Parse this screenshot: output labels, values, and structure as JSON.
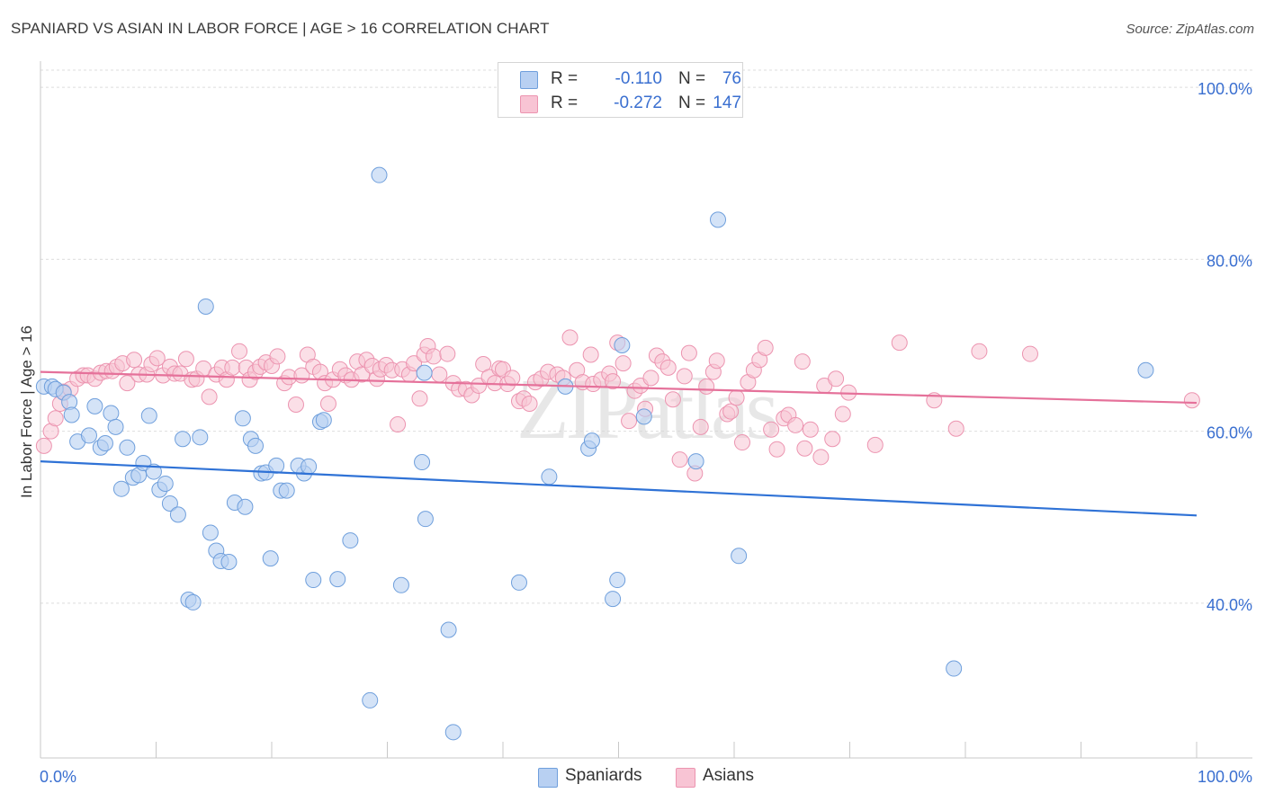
{
  "title": "SPANIARD VS ASIAN IN LABOR FORCE | AGE > 16 CORRELATION CHART",
  "source": "Source: ZipAtlas.com",
  "watermark": "ZIPatlas",
  "legend": {
    "rows": [
      {
        "r_label": "R =",
        "r_value": "-0.110",
        "n_label": "N =",
        "n_value": "76"
      },
      {
        "r_label": "R =",
        "r_value": "-0.272",
        "n_label": "N =",
        "n_value": "147"
      }
    ]
  },
  "bottom_legend": [
    "Spaniards",
    "Asians"
  ],
  "colors": {
    "blue_fill": "#b8d0f2",
    "blue_stroke": "#6f9fdc",
    "blue_line": "#2f72d6",
    "pink_fill": "#f8c4d4",
    "pink_stroke": "#ec94b0",
    "pink_line": "#e5719a",
    "axis_text": "#3a6fd0",
    "grid": "#dddddd"
  },
  "chart_data": {
    "type": "scatter",
    "title": "SPANIARD VS ASIAN IN LABOR FORCE | AGE > 16 CORRELATION CHART",
    "xlabel": "",
    "ylabel": "In Labor Force | Age > 16",
    "xlim": [
      0,
      100
    ],
    "ylim": [
      22,
      102
    ],
    "x_tick_labels": [
      "0.0%",
      "100.0%"
    ],
    "y_ticks": [
      40,
      60,
      80,
      100
    ],
    "y_tick_labels": [
      "40.0%",
      "60.0%",
      "80.0%",
      "100.0%"
    ],
    "grid": true,
    "series": [
      {
        "name": "Spaniards",
        "trend": {
          "x": [
            0,
            100
          ],
          "y": [
            56.5,
            50.2
          ]
        },
        "points": [
          [
            0.3,
            65.2
          ],
          [
            1,
            65.2
          ],
          [
            1.3,
            64.9
          ],
          [
            2,
            64.5
          ],
          [
            2.5,
            63.4
          ],
          [
            2.7,
            61.9
          ],
          [
            3.2,
            58.8
          ],
          [
            4.2,
            59.5
          ],
          [
            4.7,
            62.9
          ],
          [
            5.2,
            58.1
          ],
          [
            5.6,
            58.6
          ],
          [
            6.1,
            62.1
          ],
          [
            6.5,
            60.5
          ],
          [
            7,
            53.3
          ],
          [
            7.5,
            58.1
          ],
          [
            8,
            54.6
          ],
          [
            8.5,
            54.9
          ],
          [
            8.9,
            56.3
          ],
          [
            9.4,
            61.8
          ],
          [
            9.8,
            55.3
          ],
          [
            10.3,
            53.2
          ],
          [
            10.8,
            53.9
          ],
          [
            11.2,
            51.6
          ],
          [
            11.9,
            50.3
          ],
          [
            12.3,
            59.1
          ],
          [
            12.8,
            40.4
          ],
          [
            13.2,
            40.1
          ],
          [
            13.8,
            59.3
          ],
          [
            14.3,
            74.5
          ],
          [
            14.7,
            48.2
          ],
          [
            15.2,
            46.1
          ],
          [
            15.6,
            44.9
          ],
          [
            16.3,
            44.8
          ],
          [
            16.8,
            51.7
          ],
          [
            17.5,
            61.5
          ],
          [
            17.7,
            51.2
          ],
          [
            18.2,
            59.1
          ],
          [
            18.6,
            58.3
          ],
          [
            19.1,
            55.1
          ],
          [
            19.5,
            55.2
          ],
          [
            19.9,
            45.2
          ],
          [
            20.4,
            56
          ],
          [
            20.8,
            53.1
          ],
          [
            21.3,
            53.1
          ],
          [
            22.8,
            55.1
          ],
          [
            22.3,
            56
          ],
          [
            23.2,
            55.9
          ],
          [
            23.6,
            42.7
          ],
          [
            24.2,
            61.1
          ],
          [
            24.5,
            61.3
          ],
          [
            25.7,
            42.8
          ],
          [
            26.8,
            47.3
          ],
          [
            28.5,
            28.7
          ],
          [
            29.3,
            89.8
          ],
          [
            31.2,
            42.1
          ],
          [
            33,
            56.4
          ],
          [
            33.2,
            66.8
          ],
          [
            33.3,
            49.8
          ],
          [
            35.3,
            36.9
          ],
          [
            35.7,
            25
          ],
          [
            41.4,
            42.4
          ],
          [
            44,
            54.7
          ],
          [
            45.4,
            65.2
          ],
          [
            47.4,
            58
          ],
          [
            47.7,
            58.9
          ],
          [
            49.5,
            40.5
          ],
          [
            49.9,
            42.7
          ],
          [
            50.3,
            70
          ],
          [
            52.2,
            61.7
          ],
          [
            56.7,
            56.5
          ],
          [
            58.6,
            84.6
          ],
          [
            60.4,
            45.5
          ],
          [
            79,
            32.4
          ],
          [
            95.6,
            67.1
          ]
        ]
      },
      {
        "name": "Asians",
        "trend": {
          "x": [
            0,
            100
          ],
          "y": [
            66.9,
            63.3
          ]
        },
        "points": [
          [
            0.3,
            58.3
          ],
          [
            0.9,
            60
          ],
          [
            1.3,
            61.5
          ],
          [
            1.7,
            63.2
          ],
          [
            2,
            64.6
          ],
          [
            2.6,
            64.9
          ],
          [
            3.2,
            66.1
          ],
          [
            3.7,
            66.5
          ],
          [
            4.1,
            66.5
          ],
          [
            4.7,
            66.1
          ],
          [
            5.2,
            66.8
          ],
          [
            5.7,
            67
          ],
          [
            6.2,
            67
          ],
          [
            6.6,
            67.5
          ],
          [
            7.1,
            67.9
          ],
          [
            7.5,
            65.6
          ],
          [
            8.1,
            68.3
          ],
          [
            8.5,
            66.6
          ],
          [
            9.2,
            66.6
          ],
          [
            9.6,
            67.8
          ],
          [
            10.1,
            68.5
          ],
          [
            10.6,
            66.5
          ],
          [
            11.2,
            67.5
          ],
          [
            11.6,
            66.7
          ],
          [
            12.1,
            66.7
          ],
          [
            12.6,
            68.4
          ],
          [
            13.1,
            66
          ],
          [
            13.5,
            66.1
          ],
          [
            14.1,
            67.3
          ],
          [
            14.6,
            64
          ],
          [
            15.2,
            66.6
          ],
          [
            15.7,
            67.4
          ],
          [
            16.1,
            66
          ],
          [
            16.6,
            67.4
          ],
          [
            17.2,
            69.3
          ],
          [
            17.8,
            67.4
          ],
          [
            18.1,
            66
          ],
          [
            18.6,
            66.9
          ],
          [
            19,
            67.5
          ],
          [
            19.5,
            68
          ],
          [
            20,
            67.6
          ],
          [
            20.5,
            68.7
          ],
          [
            21.1,
            65.6
          ],
          [
            21.5,
            66.3
          ],
          [
            22.1,
            63.1
          ],
          [
            22.6,
            66.5
          ],
          [
            23.1,
            68.9
          ],
          [
            23.6,
            67.5
          ],
          [
            24.2,
            66.9
          ],
          [
            24.6,
            65.6
          ],
          [
            24.9,
            63.2
          ],
          [
            25.3,
            66
          ],
          [
            25.9,
            67.2
          ],
          [
            26.4,
            66.5
          ],
          [
            26.9,
            66
          ],
          [
            27.4,
            68.1
          ],
          [
            27.8,
            66.6
          ],
          [
            28.2,
            68.3
          ],
          [
            28.7,
            67.6
          ],
          [
            29.1,
            66.1
          ],
          [
            29.4,
            67.2
          ],
          [
            29.9,
            67.7
          ],
          [
            30.4,
            67.1
          ],
          [
            30.9,
            60.8
          ],
          [
            31.3,
            67.2
          ],
          [
            31.9,
            66.6
          ],
          [
            32.3,
            67.9
          ],
          [
            32.8,
            63.8
          ],
          [
            33.2,
            68.9
          ],
          [
            33.5,
            69.9
          ],
          [
            34,
            68.7
          ],
          [
            34.5,
            66.6
          ],
          [
            35.2,
            69
          ],
          [
            35.7,
            65.6
          ],
          [
            36.2,
            64.9
          ],
          [
            36.8,
            64.9
          ],
          [
            37.3,
            64.2
          ],
          [
            37.9,
            65.3
          ],
          [
            38.3,
            67.8
          ],
          [
            38.8,
            66.3
          ],
          [
            39.3,
            65.6
          ],
          [
            39.7,
            67.3
          ],
          [
            40,
            67.2
          ],
          [
            40.4,
            65.5
          ],
          [
            40.8,
            66.2
          ],
          [
            41.4,
            63.5
          ],
          [
            41.8,
            63.8
          ],
          [
            42.3,
            63.2
          ],
          [
            42.8,
            65.7
          ],
          [
            43.3,
            66.1
          ],
          [
            43.9,
            66.9
          ],
          [
            44.7,
            66.6
          ],
          [
            45.2,
            66.2
          ],
          [
            45.8,
            70.9
          ],
          [
            46.4,
            67.1
          ],
          [
            46.9,
            65.7
          ],
          [
            47.6,
            68.9
          ],
          [
            47.8,
            65.5
          ],
          [
            48.5,
            66
          ],
          [
            49.2,
            66.7
          ],
          [
            49.5,
            65.8
          ],
          [
            49.9,
            70.3
          ],
          [
            50.4,
            67.9
          ],
          [
            50.9,
            61.2
          ],
          [
            51.4,
            64.7
          ],
          [
            51.9,
            65.3
          ],
          [
            52.3,
            62.6
          ],
          [
            52.8,
            66.2
          ],
          [
            53.3,
            68.8
          ],
          [
            53.8,
            68.1
          ],
          [
            54.3,
            67.4
          ],
          [
            54.7,
            63.7
          ],
          [
            55.3,
            56.7
          ],
          [
            55.7,
            66.4
          ],
          [
            56.1,
            69.1
          ],
          [
            56.6,
            55.1
          ],
          [
            57.1,
            60.5
          ],
          [
            57.6,
            65.2
          ],
          [
            58.2,
            66.9
          ],
          [
            58.5,
            68.2
          ],
          [
            59.4,
            62
          ],
          [
            59.7,
            62.3
          ],
          [
            60.2,
            63.9
          ],
          [
            60.7,
            58.7
          ],
          [
            61.2,
            65.7
          ],
          [
            61.7,
            67.1
          ],
          [
            62.2,
            68.3
          ],
          [
            62.7,
            69.7
          ],
          [
            63.2,
            60.2
          ],
          [
            63.7,
            57.9
          ],
          [
            64.3,
            61.5
          ],
          [
            64.7,
            61.9
          ],
          [
            65.3,
            60.7
          ],
          [
            65.9,
            68.1
          ],
          [
            66.1,
            58
          ],
          [
            66.6,
            60.2
          ],
          [
            67.5,
            57
          ],
          [
            67.8,
            65.3
          ],
          [
            68.5,
            59.1
          ],
          [
            68.8,
            66.1
          ],
          [
            69.4,
            62
          ],
          [
            69.9,
            64.5
          ],
          [
            72.2,
            58.4
          ],
          [
            74.3,
            70.3
          ],
          [
            77.3,
            63.6
          ],
          [
            79.2,
            60.3
          ],
          [
            81.2,
            69.3
          ],
          [
            85.6,
            69
          ],
          [
            99.6,
            63.6
          ]
        ]
      }
    ]
  }
}
